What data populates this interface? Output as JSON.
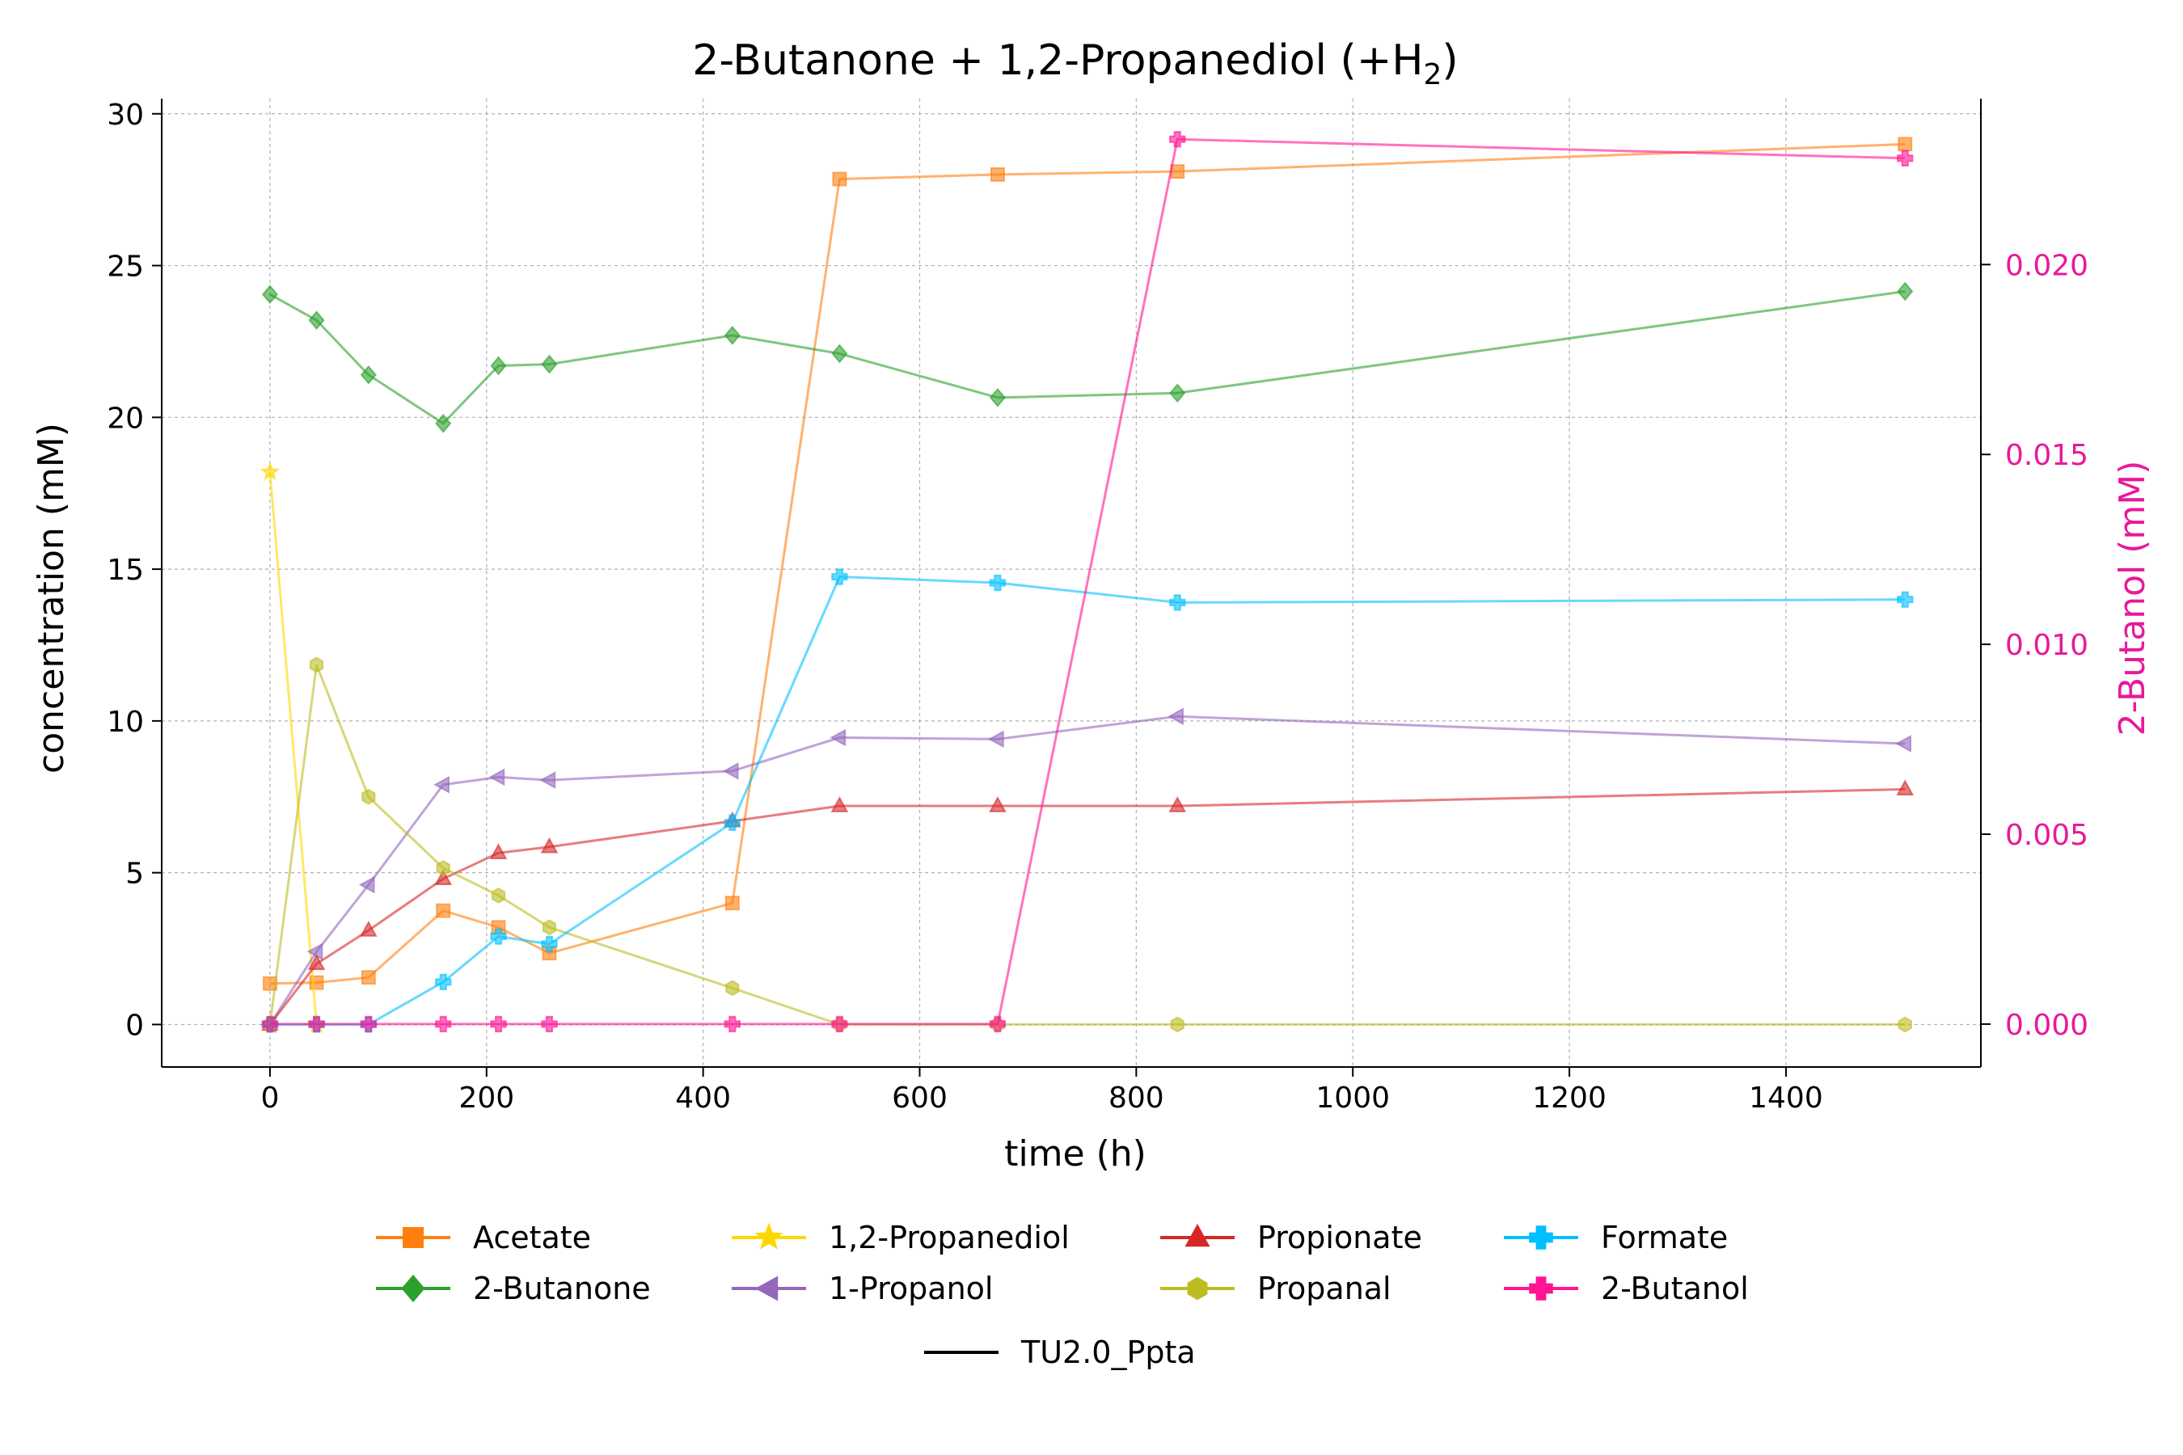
{
  "chart_data": {
    "type": "line",
    "title": "2-Butanone + 1,2-Propanediol (+H",
    "title_sub": "2",
    "title_end": ")",
    "xlabel": "time (h)",
    "ylabel": "concentration (mM)",
    "ylabel_right": "2-Butanol (mM)",
    "xlim": [
      -100,
      1580
    ],
    "ylim": [
      -1.4,
      30.5
    ],
    "ylim_right": [
      -0.00113,
      0.02437
    ],
    "xticks": [
      0,
      200,
      400,
      600,
      800,
      1000,
      1200,
      1400
    ],
    "yticks": [
      0,
      5,
      10,
      15,
      20,
      25,
      30
    ],
    "yticks_right": [
      0.0,
      0.005,
      0.01,
      0.015,
      0.02
    ],
    "yticks_right_labels": [
      "0.000",
      "0.005",
      "0.010",
      "0.015",
      "0.020"
    ],
    "grid": true,
    "legend_placement": "bottom-center",
    "right_axis_color": "#e8199a",
    "series": [
      {
        "name": "Acetate",
        "color": "#ff7f0e",
        "marker": "square",
        "axis": "left",
        "x": [
          0,
          43,
          91,
          160,
          211,
          258,
          427,
          526,
          672,
          838,
          1510
        ],
        "y": [
          1.35,
          1.38,
          1.55,
          3.75,
          3.2,
          2.35,
          4.0,
          27.85,
          28.0,
          28.1,
          29.0
        ]
      },
      {
        "name": "2-Butanone",
        "color": "#2ca02c",
        "marker": "diamond",
        "axis": "left",
        "x": [
          0,
          43,
          91,
          160,
          211,
          258,
          427,
          526,
          672,
          838,
          1510
        ],
        "y": [
          24.05,
          23.2,
          21.4,
          19.8,
          21.7,
          21.75,
          22.7,
          22.1,
          20.65,
          20.8,
          24.15
        ]
      },
      {
        "name": "1,2-Propanediol",
        "color": "#ffd700",
        "marker": "star",
        "axis": "left",
        "x": [
          0,
          43
        ],
        "y": [
          18.2,
          0.0
        ]
      },
      {
        "name": "1-Propanol",
        "color": "#9467bd",
        "marker": "triangle-left",
        "axis": "left",
        "x": [
          0,
          43,
          91,
          160,
          211,
          258,
          427,
          526,
          672,
          838,
          1510
        ],
        "y": [
          0.0,
          2.4,
          4.6,
          7.9,
          8.15,
          8.05,
          8.35,
          9.45,
          9.4,
          10.15,
          9.25
        ]
      },
      {
        "name": "Propionate",
        "color": "#d62728",
        "marker": "triangle-up",
        "axis": "left",
        "x": [
          0,
          43,
          91,
          160,
          211,
          258,
          427,
          526,
          672,
          838,
          1510
        ],
        "y": [
          0.0,
          2.0,
          3.1,
          4.8,
          5.65,
          5.85,
          6.7,
          7.2,
          7.2,
          7.2,
          7.75
        ]
      },
      {
        "name": "Propanal",
        "color": "#bcbd22",
        "marker": "hexagon",
        "axis": "left",
        "x": [
          0,
          43,
          91,
          160,
          211,
          258,
          427,
          526,
          672,
          838,
          1510
        ],
        "y": [
          0.0,
          11.85,
          7.5,
          5.15,
          4.25,
          3.2,
          1.2,
          0.0,
          0.0,
          0.0,
          0.0
        ]
      },
      {
        "name": "Formate",
        "color": "#00bfff",
        "marker": "plus",
        "axis": "left",
        "x": [
          0,
          43,
          91,
          160,
          211,
          258,
          427,
          526,
          672,
          838,
          1510
        ],
        "y": [
          0.0,
          0.0,
          0.0,
          1.4,
          2.9,
          2.65,
          6.65,
          14.75,
          14.55,
          13.9,
          14.0
        ]
      },
      {
        "name": "2-Butanol",
        "color": "#ff1493",
        "marker": "plus",
        "axis": "right",
        "x": [
          0,
          43,
          91,
          160,
          211,
          258,
          427,
          526,
          672,
          838,
          1510
        ],
        "y": [
          0.0,
          0.0,
          0.0,
          0.0,
          0.0,
          0.0,
          0.0,
          0.0,
          0.0,
          0.0233,
          0.0228
        ]
      }
    ],
    "legend_order": [
      "Acetate",
      "2-Butanone",
      "1,2-Propanediol",
      "1-Propanol",
      "Propionate",
      "Propanal",
      "Formate",
      "2-Butanol"
    ],
    "strain_legend": {
      "label": "TU2.0_Ppta",
      "color": "#000000"
    }
  }
}
